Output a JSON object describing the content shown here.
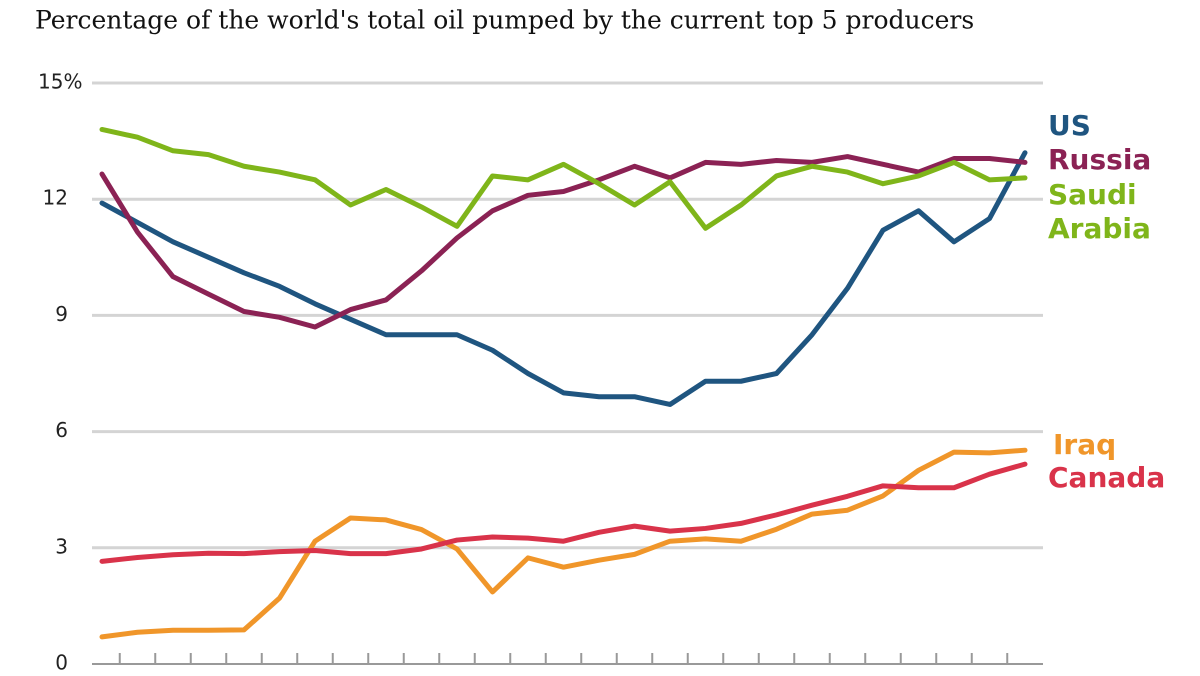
{
  "chart_data": {
    "type": "line",
    "title": "Percentage of the world's total oil pumped by the current top 5 producers",
    "categories": [
      null,
      null,
      null,
      null,
      null,
      null,
      null,
      null,
      null,
      null,
      null,
      null,
      null,
      null,
      null,
      null,
      null,
      null,
      null,
      null,
      null,
      null,
      null,
      null,
      null,
      null,
      null
    ],
    "ylim": [
      0,
      15
    ],
    "yticks": [
      0,
      3,
      6,
      9,
      12,
      {
        "value": 15,
        "label": "15%"
      }
    ],
    "grid": true,
    "series": [
      {
        "name": "US",
        "color": "#1f5580",
        "values": [
          11.9,
          11.4,
          10.9,
          10.5,
          10.1,
          9.75,
          9.3,
          8.9,
          8.5,
          8.5,
          8.5,
          8.1,
          7.5,
          7.0,
          6.9,
          6.9,
          6.7,
          7.3,
          7.3,
          7.5,
          8.5,
          9.7,
          11.2,
          11.7,
          10.9,
          11.5,
          13.2
        ]
      },
      {
        "name": "Russia",
        "color": "#8b2254",
        "values": [
          12.65,
          11.15,
          10.0,
          9.55,
          9.1,
          8.95,
          8.7,
          9.15,
          9.4,
          10.15,
          11.0,
          11.7,
          12.1,
          12.2,
          12.5,
          12.85,
          12.55,
          12.95,
          12.9,
          13.0,
          12.95,
          13.1,
          12.9,
          12.7,
          13.05,
          13.05,
          12.95
        ]
      },
      {
        "name": "Saudi Arabia",
        "color": "#7fb51a",
        "values": [
          13.8,
          13.6,
          13.25,
          13.15,
          12.85,
          12.7,
          12.5,
          11.85,
          12.25,
          11.8,
          11.3,
          12.6,
          12.5,
          12.9,
          12.4,
          11.85,
          12.45,
          11.25,
          11.85,
          12.6,
          12.85,
          12.7,
          12.4,
          12.6,
          12.95,
          12.5,
          12.55
        ]
      },
      {
        "name": "Iraq",
        "color": "#f0962a",
        "values": [
          0.7,
          0.82,
          0.87,
          0.87,
          0.88,
          1.7,
          3.17,
          3.77,
          3.72,
          3.47,
          2.97,
          1.86,
          2.74,
          2.5,
          2.68,
          2.83,
          3.17,
          3.23,
          3.17,
          3.48,
          3.87,
          3.97,
          4.34,
          5.0,
          5.47,
          5.45,
          5.52
        ]
      },
      {
        "name": "Canada",
        "color": "#d9334a",
        "values": [
          2.65,
          2.75,
          2.82,
          2.86,
          2.85,
          2.9,
          2.93,
          2.85,
          2.85,
          2.97,
          3.2,
          3.28,
          3.25,
          3.17,
          3.4,
          3.56,
          3.43,
          3.5,
          3.63,
          3.85,
          4.1,
          4.33,
          4.6,
          4.55,
          4.55,
          4.9,
          5.16
        ]
      }
    ]
  }
}
